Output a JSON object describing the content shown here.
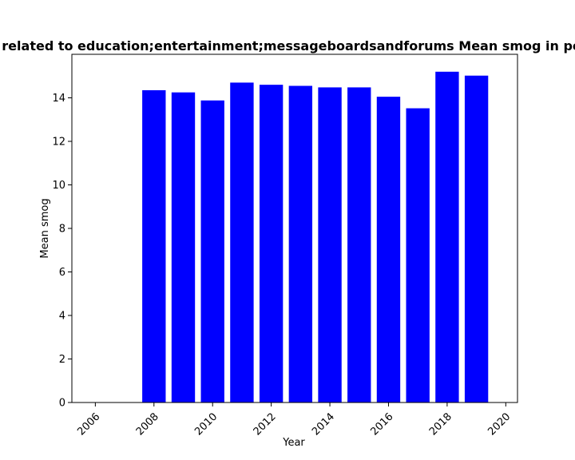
{
  "chart_data": {
    "type": "bar",
    "title": "Pages related to education;entertainment;messageboardsandforums Mean smog in per year",
    "xlabel": "Year",
    "ylabel": "Mean smog",
    "x": [
      2008,
      2009,
      2010,
      2011,
      2012,
      2013,
      2014,
      2015,
      2016,
      2017,
      2018,
      2019
    ],
    "values": [
      14.35,
      14.25,
      13.88,
      14.7,
      14.6,
      14.55,
      14.48,
      14.48,
      14.05,
      13.52,
      15.2,
      15.02
    ],
    "xlim": [
      2005.2,
      2020.4
    ],
    "ylim": [
      0,
      16
    ],
    "xticks": [
      "2006",
      "2008",
      "2010",
      "2012",
      "2014",
      "2016",
      "2018",
      "2020"
    ],
    "yticks": [
      "0",
      "2",
      "4",
      "6",
      "8",
      "10",
      "12",
      "14"
    ],
    "bar_color": "#0000ff",
    "grid": false,
    "legend": "none"
  }
}
